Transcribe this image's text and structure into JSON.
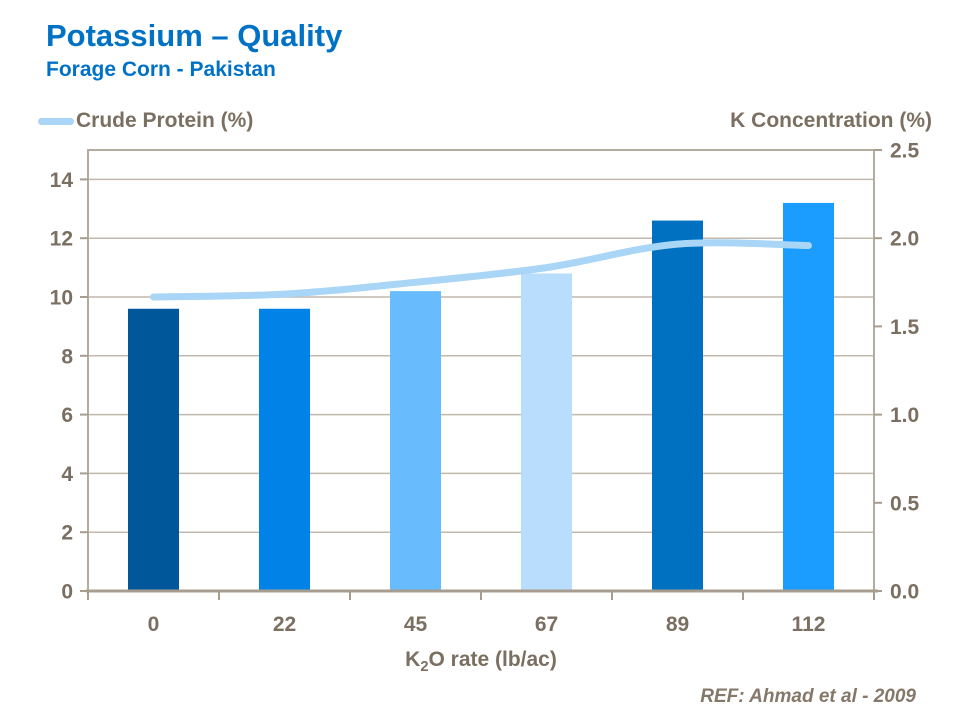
{
  "title": "Potassium – Quality",
  "subtitle": "Forage Corn - Pakistan",
  "legend": {
    "label": "Crude Protein (%)"
  },
  "right_axis_title": "K Concentration (%)",
  "x_axis_title": {
    "prefix": "K",
    "sub": "2",
    "suffix": "O rate (lb/ac)"
  },
  "reference": "REF: Ahmad et al - 2009",
  "colors": {
    "title_blue": "#0072C6",
    "text_taupe": "#7A6F60",
    "reference_taupe": "#857868",
    "grid": "#C2B9AE",
    "frame": "#B5ACA0",
    "axis_line": "#A79D8F",
    "line_series": "#A9D5F6"
  },
  "chart_data": {
    "type": "bar",
    "title": "Potassium – Quality / Forage Corn - Pakistan",
    "categories": [
      "0",
      "22",
      "45",
      "67",
      "89",
      "112"
    ],
    "series": [
      {
        "name": "K Concentration (%)",
        "chart": "bar",
        "axis": "right",
        "values": [
          1.6,
          1.6,
          1.7,
          1.8,
          2.1,
          2.2
        ],
        "bar_colors": [
          "#00589B",
          "#0082E6",
          "#68BBFC",
          "#B9DDFC",
          "#0070C0",
          "#1B9CFF"
        ]
      },
      {
        "name": "Crude Protein (%)",
        "chart": "line",
        "axis": "left",
        "values": [
          10.0,
          10.1,
          10.5,
          11.0,
          11.8,
          11.75
        ],
        "color": "#A9D5F6"
      }
    ],
    "left_axis": {
      "min": 0,
      "max": 15,
      "ticks": [
        0,
        2,
        4,
        6,
        8,
        10,
        12,
        14
      ],
      "tick_labels": [
        "0",
        "2",
        "4",
        "6",
        "8",
        "10",
        "12",
        "14"
      ]
    },
    "right_axis": {
      "label": "K Concentration (%)",
      "min": 0,
      "max": 2.5,
      "ticks": [
        0,
        0.5,
        1.0,
        1.5,
        2.0,
        2.5
      ],
      "tick_labels": [
        "0.0",
        "0.5",
        "1.0",
        "1.5",
        "2.0",
        "2.5"
      ]
    },
    "xlabel": "K2O rate (lb/ac)",
    "grid": "horizontal gridlines at each left-axis tick",
    "legend_position": "top-left"
  }
}
